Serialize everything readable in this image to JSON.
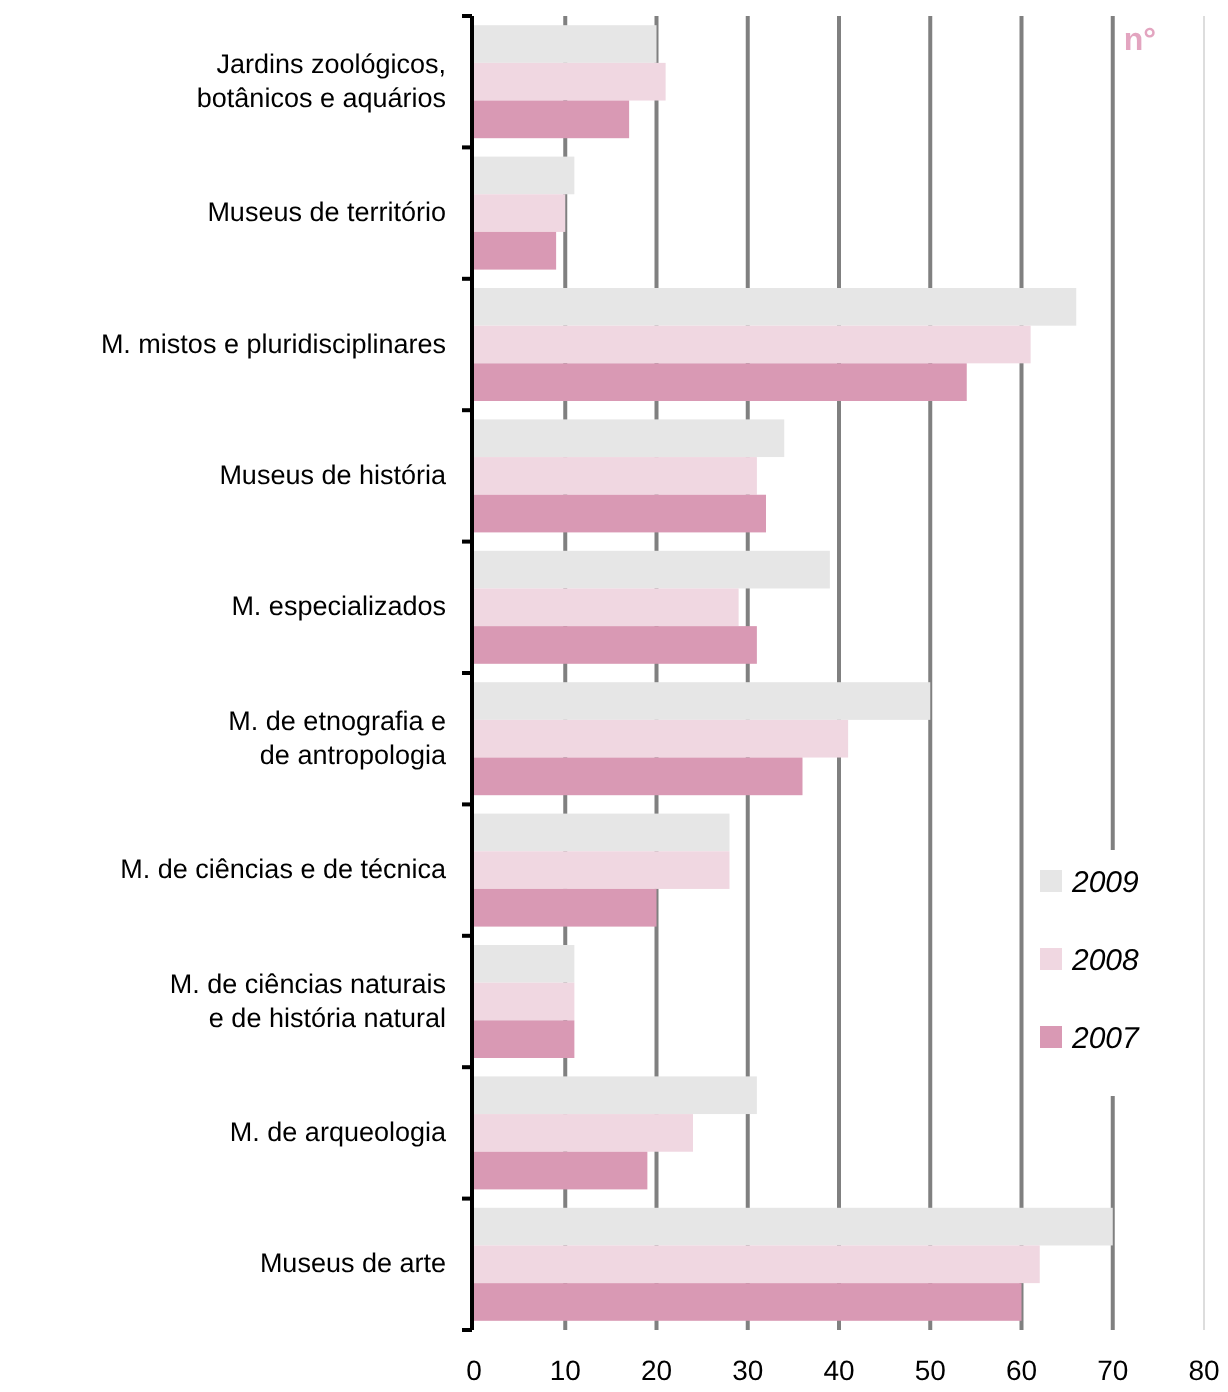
{
  "chart_data": {
    "type": "bar",
    "orientation": "horizontal",
    "xlabel": "n°",
    "categories": [
      "Jardins zoológicos,\nbotânicos e aquários",
      "Museus de território",
      "M. mistos e pluridisciplinares",
      "Museus de história",
      "M. especializados",
      "M. de etnografia e\nde antropologia",
      "M. de ciências e de técnica",
      "M. de ciências naturais\ne de história natural",
      "M. de arqueologia",
      "Museus de arte"
    ],
    "series": [
      {
        "name": "2009",
        "color": "#e6e6e6",
        "values": [
          20,
          11,
          66,
          34,
          39,
          50,
          28,
          11,
          31,
          70
        ]
      },
      {
        "name": "2008",
        "color": "#f0d7e1",
        "values": [
          21,
          10,
          61,
          31,
          29,
          41,
          28,
          11,
          24,
          62
        ]
      },
      {
        "name": "2007",
        "color": "#d999b4",
        "values": [
          17,
          9,
          54,
          32,
          31,
          36,
          20,
          11,
          19,
          60
        ]
      }
    ],
    "xlim": [
      0,
      80
    ],
    "xticks": [
      0,
      10,
      20,
      30,
      40,
      50,
      60,
      70,
      80
    ],
    "grid": "x",
    "legend": "bottom right"
  }
}
